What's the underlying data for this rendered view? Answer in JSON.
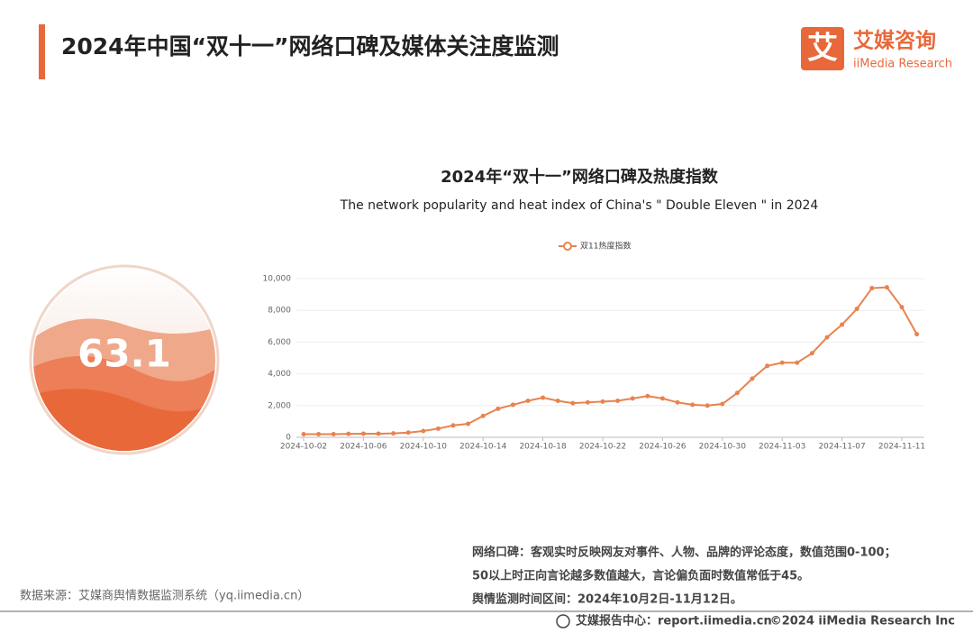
{
  "header": {
    "title": "2024年中国“双十一”网络口碑及媒体关注度监测",
    "logo_mark": "艾",
    "logo_cn": "艾媒咨询",
    "logo_en": "iiMedia Research"
  },
  "gauge": {
    "value": "63.1"
  },
  "chart_data": {
    "type": "line",
    "title": "2024年“双十一”网络口碑及热度指数",
    "subtitle": "The network popularity and heat index of China's \" Double Eleven \" in 2024",
    "categories": [
      "2024-10-02",
      null,
      null,
      null,
      "2024-10-06",
      null,
      null,
      null,
      "2024-10-10",
      null,
      null,
      null,
      "2024-10-14",
      null,
      null,
      null,
      "2024-10-18",
      null,
      null,
      null,
      "2024-10-22",
      null,
      null,
      null,
      "2024-10-26",
      null,
      null,
      null,
      "2024-10-30",
      null,
      null,
      null,
      "2024-11-03",
      null,
      null,
      null,
      "2024-11-07",
      null,
      null,
      null,
      "2024-11-11",
      null
    ],
    "series": [
      {
        "name": "双11热度指数",
        "color": "#e8834f",
        "values": [
          200,
          200,
          200,
          220,
          230,
          230,
          250,
          300,
          400,
          550,
          750,
          850,
          1350,
          1800,
          2050,
          2300,
          2500,
          2300,
          2150,
          2200,
          2250,
          2300,
          2450,
          2600,
          2450,
          2200,
          2050,
          2000,
          2100,
          2800,
          3700,
          4500,
          4700,
          4700,
          5300,
          6300,
          7100,
          8100,
          9400,
          9450,
          8200,
          6500
        ]
      }
    ],
    "ylim": [
      0,
      10000
    ],
    "yticks": [
      0,
      {
        "value": 2000,
        "label": "2,000"
      },
      {
        "value": 4000,
        "label": "4,000"
      },
      {
        "value": 6000,
        "label": "6,000"
      },
      {
        "value": 8000,
        "label": "8,000"
      },
      {
        "value": 10000,
        "label": "10,000"
      }
    ],
    "grid": true,
    "legend": "top"
  },
  "notes": [
    "网络口碑：客观实时反映网友对事件、人物、品牌的评论态度，数值范围0-100；",
    "50以上时正向言论越多数值越大，言论偏负面时数值常低于45。",
    "舆情监测时间区间：2024年10月2日-11月12日。"
  ],
  "source": "数据来源：艾媒商舆情数据监测系统（yq.iimedia.cn）",
  "footer": {
    "center": "艾媒报告中心：report.iimedia.cn",
    "copyright": "©2024  iiMedia Research  Inc"
  }
}
